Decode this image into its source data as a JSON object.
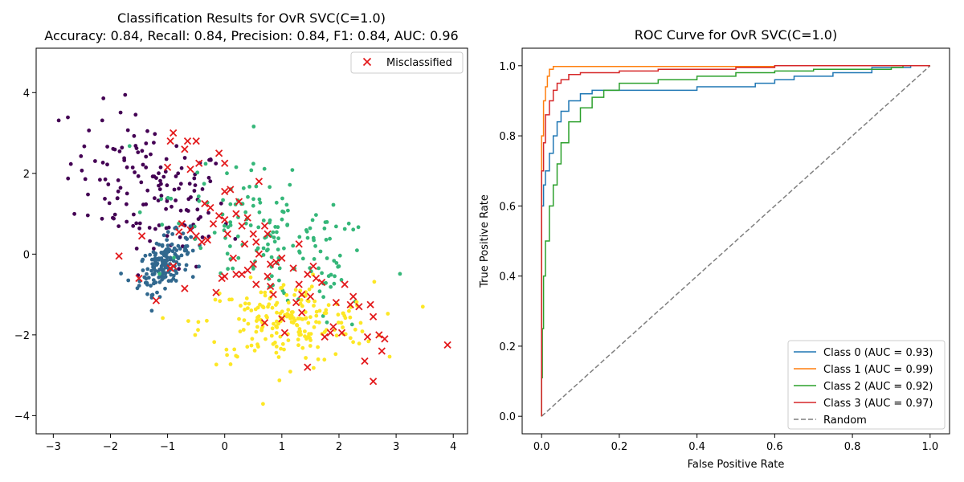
{
  "chart_data": [
    {
      "type": "scatter",
      "title": "Classification Results for OvR SVC(C=1.0)",
      "subtitle": "Accuracy: 0.84, Recall: 0.84, Precision: 0.84, F1: 0.84, AUC: 0.96",
      "xlabel": "",
      "ylabel": "",
      "xlim": [
        -3.3,
        4.25
      ],
      "ylim": [
        -4.45,
        5.1
      ],
      "xticks": [
        -3,
        -2,
        -1,
        0,
        1,
        2,
        3,
        4
      ],
      "yticks": [
        -4,
        -2,
        0,
        2,
        4
      ],
      "xtick_labels": [
        "−3",
        "−2",
        "−1",
        "0",
        "1",
        "2",
        "3",
        "4"
      ],
      "ytick_labels": [
        "−4",
        "−2",
        "0",
        "2",
        "4"
      ],
      "grid": false,
      "legend": {
        "placement": "top-right",
        "entries": [
          "Misclassified"
        ]
      },
      "misclassified_color": "#e31a1c",
      "clusters": [
        {
          "class": 0,
          "color": "#440154",
          "center": [
            -1.3,
            1.6
          ],
          "spread": [
            0.7,
            0.85
          ],
          "count": 150
        },
        {
          "class": 1,
          "color": "#31688e",
          "center": [
            -1.05,
            -0.2
          ],
          "spread": [
            0.22,
            0.3
          ],
          "count": 170
        },
        {
          "class": 2,
          "color": "#35b779",
          "center": [
            0.9,
            0.3
          ],
          "spread": [
            0.9,
            1.0
          ],
          "count": 170
        },
        {
          "class": 3,
          "color": "#fde725",
          "center": [
            1.1,
            -1.7
          ],
          "spread": [
            0.75,
            0.5
          ],
          "count": 210
        }
      ],
      "misclassified_points": [
        [
          -1.85,
          -0.05
        ],
        [
          -1.45,
          0.45
        ],
        [
          -1.5,
          -0.6
        ],
        [
          -1.2,
          -1.15
        ],
        [
          -1.0,
          2.15
        ],
        [
          -0.95,
          2.8
        ],
        [
          -0.9,
          3.0
        ],
        [
          -0.7,
          2.6
        ],
        [
          -0.65,
          2.8
        ],
        [
          -0.5,
          2.8
        ],
        [
          -0.6,
          2.1
        ],
        [
          -0.45,
          2.25
        ],
        [
          -0.1,
          2.5
        ],
        [
          0.0,
          2.25
        ],
        [
          -0.9,
          -0.3
        ],
        [
          -0.95,
          -0.35
        ],
        [
          -0.7,
          -0.85
        ],
        [
          -0.8,
          0.55
        ],
        [
          -0.75,
          0.75
        ],
        [
          -0.6,
          0.6
        ],
        [
          -0.5,
          0.45
        ],
        [
          -0.4,
          0.3
        ],
        [
          -0.3,
          0.35
        ],
        [
          -0.25,
          1.15
        ],
        [
          -0.35,
          1.25
        ],
        [
          -0.2,
          0.75
        ],
        [
          -0.1,
          0.95
        ],
        [
          0.0,
          0.85
        ],
        [
          0.05,
          0.5
        ],
        [
          0.1,
          1.6
        ],
        [
          0.2,
          1.0
        ],
        [
          0.25,
          1.3
        ],
        [
          0.3,
          0.7
        ],
        [
          0.35,
          0.25
        ],
        [
          0.4,
          0.9
        ],
        [
          0.5,
          0.5
        ],
        [
          0.55,
          0.3
        ],
        [
          0.6,
          0.0
        ],
        [
          0.7,
          0.7
        ],
        [
          0.75,
          0.5
        ],
        [
          0.8,
          -0.25
        ],
        [
          0.9,
          -0.2
        ],
        [
          0.5,
          -0.25
        ],
        [
          0.4,
          -0.4
        ],
        [
          0.3,
          -0.5
        ],
        [
          0.2,
          -0.5
        ],
        [
          0.0,
          -0.55
        ],
        [
          -0.15,
          -0.95
        ],
        [
          0.55,
          -0.75
        ],
        [
          0.75,
          -0.55
        ],
        [
          0.8,
          -0.8
        ],
        [
          0.85,
          -1.0
        ],
        [
          0.7,
          -1.7
        ],
        [
          1.0,
          -1.6
        ],
        [
          1.05,
          -1.95
        ],
        [
          1.25,
          -1.2
        ],
        [
          1.3,
          -0.75
        ],
        [
          1.35,
          -1.0
        ],
        [
          1.45,
          -0.5
        ],
        [
          1.55,
          -0.3
        ],
        [
          1.6,
          -0.6
        ],
        [
          1.7,
          -0.7
        ],
        [
          1.5,
          -1.05
        ],
        [
          1.35,
          -1.45
        ],
        [
          1.45,
          -2.8
        ],
        [
          1.75,
          -2.05
        ],
        [
          1.85,
          -1.95
        ],
        [
          1.9,
          -1.8
        ],
        [
          1.95,
          -1.2
        ],
        [
          2.05,
          -1.95
        ],
        [
          2.1,
          -0.75
        ],
        [
          2.2,
          -1.25
        ],
        [
          2.25,
          -1.05
        ],
        [
          2.35,
          -1.3
        ],
        [
          2.45,
          -2.65
        ],
        [
          2.5,
          -2.05
        ],
        [
          2.55,
          -1.25
        ],
        [
          2.6,
          -1.55
        ],
        [
          2.7,
          -2.0
        ],
        [
          2.75,
          -2.4
        ],
        [
          2.8,
          -2.1
        ],
        [
          2.6,
          -3.15
        ],
        [
          3.9,
          -2.25
        ],
        [
          1.3,
          0.25
        ],
        [
          1.0,
          -0.1
        ],
        [
          1.2,
          -0.35
        ],
        [
          0.15,
          -0.1
        ],
        [
          -0.05,
          -0.6
        ],
        [
          0.0,
          1.55
        ],
        [
          0.6,
          1.8
        ]
      ]
    },
    {
      "type": "line",
      "title": "ROC Curve for OvR SVC(C=1.0)",
      "xlabel": "False Positive Rate",
      "ylabel": "True Positive Rate",
      "xlim": [
        -0.05,
        1.05
      ],
      "ylim": [
        -0.05,
        1.05
      ],
      "xticks": [
        0.0,
        0.2,
        0.4,
        0.6,
        0.8,
        1.0
      ],
      "yticks": [
        0.0,
        0.2,
        0.4,
        0.6,
        0.8,
        1.0
      ],
      "xtick_labels": [
        "0.0",
        "0.2",
        "0.4",
        "0.6",
        "0.8",
        "1.0"
      ],
      "ytick_labels": [
        "0.0",
        "0.2",
        "0.4",
        "0.6",
        "0.8",
        "1.0"
      ],
      "grid": false,
      "legend": {
        "placement": "bottom-right"
      },
      "series": [
        {
          "name": "Class 0 (AUC = 0.93)",
          "color": "#1f77b4",
          "points": [
            [
              0,
              0
            ],
            [
              0,
              0.55
            ],
            [
              0.005,
              0.6
            ],
            [
              0.01,
              0.66
            ],
            [
              0.02,
              0.7
            ],
            [
              0.03,
              0.75
            ],
            [
              0.04,
              0.8
            ],
            [
              0.05,
              0.84
            ],
            [
              0.07,
              0.87
            ],
            [
              0.1,
              0.9
            ],
            [
              0.13,
              0.92
            ],
            [
              0.2,
              0.93
            ],
            [
              0.4,
              0.93
            ],
            [
              0.55,
              0.94
            ],
            [
              0.6,
              0.95
            ],
            [
              0.65,
              0.96
            ],
            [
              0.75,
              0.97
            ],
            [
              0.85,
              0.98
            ],
            [
              0.95,
              0.995
            ],
            [
              1,
              1
            ]
          ]
        },
        {
          "name": "Class 1 (AUC = 0.99)",
          "color": "#ff7f0e",
          "points": [
            [
              0,
              0
            ],
            [
              0,
              0.5
            ],
            [
              0.005,
              0.8
            ],
            [
              0.01,
              0.9
            ],
            [
              0.015,
              0.94
            ],
            [
              0.02,
              0.97
            ],
            [
              0.03,
              0.99
            ],
            [
              0.05,
              0.998
            ],
            [
              0.6,
              0.998
            ],
            [
              0.8,
              1.0
            ],
            [
              1,
              1
            ]
          ]
        },
        {
          "name": "Class 2 (AUC = 0.92)",
          "color": "#2ca02c",
          "points": [
            [
              0,
              0
            ],
            [
              0.002,
              0.11
            ],
            [
              0.005,
              0.25
            ],
            [
              0.01,
              0.4
            ],
            [
              0.02,
              0.5
            ],
            [
              0.03,
              0.6
            ],
            [
              0.04,
              0.66
            ],
            [
              0.05,
              0.72
            ],
            [
              0.07,
              0.78
            ],
            [
              0.1,
              0.84
            ],
            [
              0.13,
              0.88
            ],
            [
              0.16,
              0.91
            ],
            [
              0.2,
              0.93
            ],
            [
              0.3,
              0.95
            ],
            [
              0.4,
              0.96
            ],
            [
              0.5,
              0.97
            ],
            [
              0.6,
              0.98
            ],
            [
              0.7,
              0.985
            ],
            [
              0.8,
              0.99
            ],
            [
              0.9,
              0.99
            ],
            [
              0.93,
              0.995
            ],
            [
              1,
              1
            ]
          ]
        },
        {
          "name": "Class 3 (AUC = 0.97)",
          "color": "#d62728",
          "points": [
            [
              0,
              0
            ],
            [
              0,
              0.6
            ],
            [
              0.005,
              0.7
            ],
            [
              0.01,
              0.78
            ],
            [
              0.02,
              0.86
            ],
            [
              0.03,
              0.9
            ],
            [
              0.04,
              0.93
            ],
            [
              0.05,
              0.95
            ],
            [
              0.07,
              0.96
            ],
            [
              0.1,
              0.975
            ],
            [
              0.2,
              0.98
            ],
            [
              0.3,
              0.985
            ],
            [
              0.5,
              0.99
            ],
            [
              0.6,
              0.995
            ],
            [
              0.8,
              1.0
            ],
            [
              1,
              1
            ]
          ]
        },
        {
          "name": "Random",
          "color": "#7f7f7f",
          "dash": true,
          "points": [
            [
              0,
              0
            ],
            [
              1,
              1
            ]
          ]
        }
      ]
    }
  ]
}
